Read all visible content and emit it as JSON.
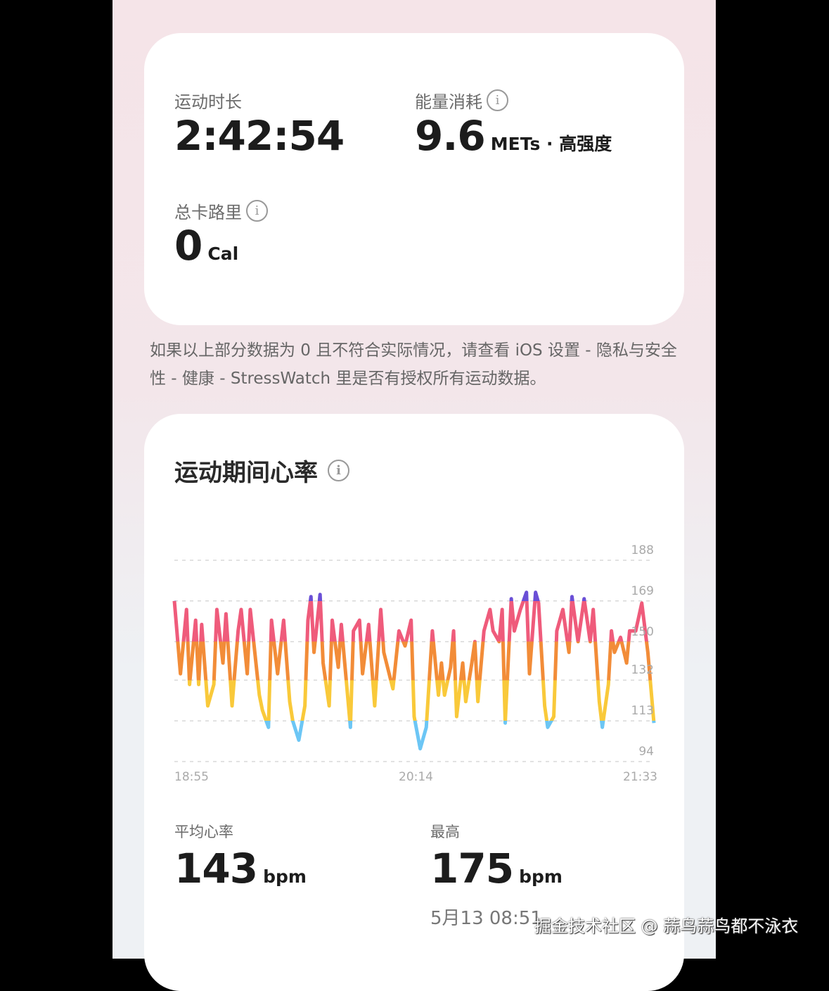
{
  "summary": {
    "duration_label": "运动时长",
    "duration_value": "2:42:54",
    "energy_label": "能量消耗",
    "energy_value": "9.6",
    "energy_unit": "METs · 高强度",
    "calories_label": "总卡路里",
    "calories_value": "0",
    "calories_unit": "Cal"
  },
  "note": "如果以上部分数据为 0 且不符合实际情况，请查看 iOS 设置 - 隐私与安全性 - 健康 - StressWatch 里是否有授权所有运动数据。",
  "heart": {
    "title": "运动期间心率",
    "avg_label": "平均心率",
    "avg_value": "143",
    "avg_unit": "bpm",
    "max_label": "最高",
    "max_value": "175",
    "max_unit": "bpm",
    "max_time": "5月13 08:51"
  },
  "watermark": "掘金技术社区 @ 蒜鸟蒜鸟都不泳衣",
  "chart_data": {
    "type": "line",
    "ylim": [
      94,
      188
    ],
    "yticks": [
      "188",
      "169",
      "150",
      "132",
      "113",
      "94"
    ],
    "xticks": [
      "18:55",
      "20:14",
      "21:33"
    ],
    "grid": true,
    "zones": [
      {
        "min": 169,
        "color": "#6a4fd6"
      },
      {
        "min": 150,
        "color": "#ef5b7b"
      },
      {
        "min": 132,
        "color": "#f28c38"
      },
      {
        "min": 113,
        "color": "#f9c93a"
      },
      {
        "min": 0,
        "color": "#6cc6f5"
      }
    ],
    "points": [
      [
        "18:55",
        169
      ],
      [
        "18:57",
        135
      ],
      [
        "18:59",
        165
      ],
      [
        "19:00",
        130
      ],
      [
        "19:02",
        160
      ],
      [
        "19:03",
        130
      ],
      [
        "19:04",
        158
      ],
      [
        "19:06",
        120
      ],
      [
        "19:08",
        130
      ],
      [
        "19:09",
        165
      ],
      [
        "19:11",
        140
      ],
      [
        "19:12",
        163
      ],
      [
        "19:14",
        120
      ],
      [
        "19:16",
        155
      ],
      [
        "19:17",
        165
      ],
      [
        "19:19",
        135
      ],
      [
        "19:20",
        165
      ],
      [
        "19:23",
        125
      ],
      [
        "19:24",
        118
      ],
      [
        "19:26",
        110
      ],
      [
        "19:27",
        160
      ],
      [
        "19:29",
        135
      ],
      [
        "19:31",
        160
      ],
      [
        "19:33",
        122
      ],
      [
        "19:34",
        113
      ],
      [
        "19:36",
        104
      ],
      [
        "19:38",
        120
      ],
      [
        "19:39",
        160
      ],
      [
        "19:40",
        171
      ],
      [
        "19:41",
        145
      ],
      [
        "19:43",
        172
      ],
      [
        "19:44",
        140
      ],
      [
        "19:46",
        120
      ],
      [
        "19:47",
        160
      ],
      [
        "19:49",
        138
      ],
      [
        "19:50",
        158
      ],
      [
        "19:53",
        110
      ],
      [
        "19:54",
        155
      ],
      [
        "19:56",
        160
      ],
      [
        "19:57",
        135
      ],
      [
        "19:59",
        158
      ],
      [
        "20:01",
        120
      ],
      [
        "20:03",
        165
      ],
      [
        "20:04",
        145
      ],
      [
        "20:07",
        128
      ],
      [
        "20:09",
        155
      ],
      [
        "20:11",
        148
      ],
      [
        "20:13",
        160
      ],
      [
        "20:14",
        115
      ],
      [
        "20:16",
        100
      ],
      [
        "20:18",
        110
      ],
      [
        "20:20",
        155
      ],
      [
        "20:22",
        125
      ],
      [
        "20:23",
        140
      ],
      [
        "20:24",
        125
      ],
      [
        "20:26",
        138
      ],
      [
        "20:27",
        155
      ],
      [
        "20:28",
        115
      ],
      [
        "20:30",
        140
      ],
      [
        "20:31",
        122
      ],
      [
        "20:33",
        140
      ],
      [
        "20:34",
        150
      ],
      [
        "20:35",
        122
      ],
      [
        "20:37",
        155
      ],
      [
        "20:39",
        165
      ],
      [
        "20:40",
        155
      ],
      [
        "20:42",
        150
      ],
      [
        "20:43",
        165
      ],
      [
        "20:44",
        112
      ],
      [
        "20:46",
        170
      ],
      [
        "20:47",
        155
      ],
      [
        "20:49",
        165
      ],
      [
        "20:51",
        173
      ],
      [
        "20:52",
        135
      ],
      [
        "20:54",
        173
      ],
      [
        "20:55",
        168
      ],
      [
        "20:57",
        120
      ],
      [
        "20:58",
        110
      ],
      [
        "21:00",
        115
      ],
      [
        "21:01",
        155
      ],
      [
        "21:03",
        165
      ],
      [
        "21:05",
        145
      ],
      [
        "21:06",
        171
      ],
      [
        "21:08",
        150
      ],
      [
        "21:10",
        170
      ],
      [
        "21:12",
        150
      ],
      [
        "21:13",
        165
      ],
      [
        "21:15",
        122
      ],
      [
        "21:16",
        110
      ],
      [
        "21:18",
        130
      ],
      [
        "21:19",
        155
      ],
      [
        "21:20",
        145
      ],
      [
        "21:22",
        152
      ],
      [
        "21:24",
        140
      ],
      [
        "21:25",
        155
      ],
      [
        "21:27",
        155
      ],
      [
        "21:29",
        168
      ],
      [
        "21:31",
        145
      ],
      [
        "21:33",
        112
      ]
    ]
  }
}
